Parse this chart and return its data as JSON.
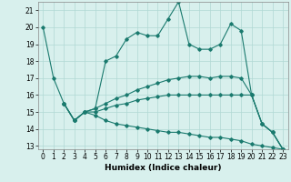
{
  "xlabel": "Humidex (Indice chaleur)",
  "bg_color": "#d8f0ed",
  "line_color": "#1a7a6e",
  "grid_color": "#b0d8d4",
  "xlim": [
    -0.5,
    23.5
  ],
  "ylim": [
    12.8,
    21.5
  ],
  "yticks": [
    13,
    14,
    15,
    16,
    17,
    18,
    19,
    20,
    21
  ],
  "xticks": [
    0,
    1,
    2,
    3,
    4,
    5,
    6,
    7,
    8,
    9,
    10,
    11,
    12,
    13,
    14,
    15,
    16,
    17,
    18,
    19,
    20,
    21,
    22,
    23
  ],
  "line1_x": [
    0,
    1,
    2,
    3,
    4,
    5,
    6,
    7,
    8,
    9,
    10,
    11,
    12,
    13,
    14,
    15,
    16,
    17,
    18,
    19,
    20,
    21,
    22,
    23
  ],
  "line1_y": [
    20.0,
    17.0,
    15.5,
    14.5,
    15.0,
    15.2,
    18.0,
    18.3,
    19.3,
    19.7,
    19.5,
    19.5,
    20.5,
    21.5,
    19.0,
    18.7,
    18.7,
    19.0,
    20.2,
    19.8,
    16.0,
    14.3,
    13.8,
    12.8
  ],
  "line2_x": [
    2,
    3,
    4,
    5,
    6,
    7,
    8,
    9,
    10,
    11,
    12,
    13,
    14,
    15,
    16,
    17,
    18,
    19,
    20,
    21,
    22,
    23
  ],
  "line2_y": [
    15.5,
    14.5,
    15.0,
    15.2,
    15.5,
    15.8,
    16.0,
    16.3,
    16.5,
    16.7,
    16.9,
    17.0,
    17.1,
    17.1,
    17.0,
    17.1,
    17.1,
    17.0,
    16.0,
    14.3,
    13.8,
    12.8
  ],
  "line3_x": [
    2,
    3,
    4,
    5,
    6,
    7,
    8,
    9,
    10,
    11,
    12,
    13,
    14,
    15,
    16,
    17,
    18,
    19,
    20,
    21,
    22,
    23
  ],
  "line3_y": [
    15.5,
    14.5,
    15.0,
    15.0,
    15.2,
    15.4,
    15.5,
    15.7,
    15.8,
    15.9,
    16.0,
    16.0,
    16.0,
    16.0,
    16.0,
    16.0,
    16.0,
    16.0,
    16.0,
    14.3,
    13.8,
    12.8
  ],
  "line4_x": [
    2,
    3,
    4,
    5,
    6,
    7,
    8,
    9,
    10,
    11,
    12,
    13,
    14,
    15,
    16,
    17,
    18,
    19,
    20,
    21,
    22,
    23
  ],
  "line4_y": [
    15.5,
    14.5,
    15.0,
    14.8,
    14.5,
    14.3,
    14.2,
    14.1,
    14.0,
    13.9,
    13.8,
    13.8,
    13.7,
    13.6,
    13.5,
    13.5,
    13.4,
    13.3,
    13.1,
    13.0,
    12.9,
    12.8
  ]
}
